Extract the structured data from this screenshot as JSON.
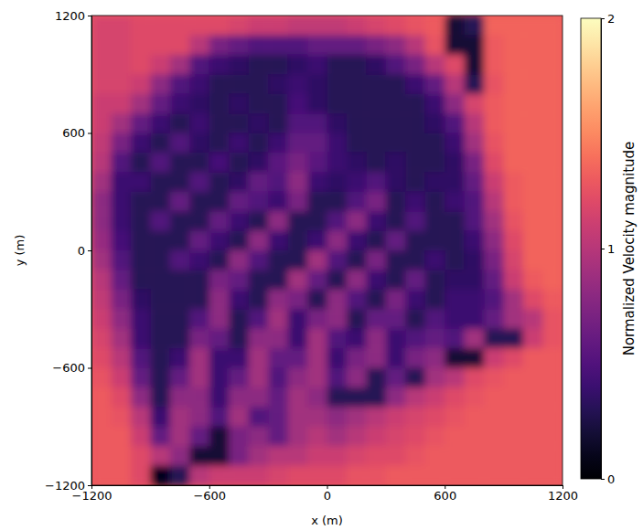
{
  "chart_data": {
    "type": "heatmap",
    "x_label": "x (m)",
    "y_label": "y (m)",
    "x": [
      -1150,
      -1050,
      -950,
      -850,
      -750,
      -650,
      -550,
      -450,
      -350,
      -250,
      -150,
      -50,
      50,
      150,
      250,
      350,
      450,
      550,
      650,
      750,
      850,
      950,
      1050,
      1150
    ],
    "y": [
      1150,
      1050,
      950,
      850,
      750,
      650,
      550,
      450,
      350,
      250,
      150,
      50,
      -50,
      -150,
      -250,
      -350,
      -450,
      -550,
      -650,
      -750,
      -850,
      -950,
      -1050,
      -1150
    ],
    "values": [
      [
        1.15,
        1.15,
        1.2,
        1.2,
        1.2,
        1.2,
        1.2,
        1.15,
        1.1,
        1.1,
        1.05,
        1.05,
        1.05,
        1.1,
        1.15,
        1.2,
        1.25,
        1.3,
        0.2,
        0.3,
        1.35,
        1.35,
        1.35,
        1.35
      ],
      [
        1.15,
        1.15,
        1.2,
        1.2,
        1.2,
        1.0,
        0.7,
        0.6,
        0.5,
        0.5,
        0.5,
        0.6,
        0.6,
        0.6,
        0.7,
        0.8,
        1.0,
        1.25,
        0.2,
        0.2,
        1.3,
        1.35,
        1.35,
        1.35
      ],
      [
        1.15,
        1.15,
        1.2,
        1.1,
        0.9,
        0.5,
        0.4,
        0.35,
        0.3,
        0.3,
        0.35,
        0.4,
        0.3,
        0.3,
        0.35,
        0.5,
        0.7,
        1.0,
        1.2,
        0.2,
        1.3,
        1.35,
        1.35,
        1.35
      ],
      [
        1.15,
        1.15,
        1.1,
        0.8,
        0.5,
        0.4,
        0.3,
        0.3,
        0.3,
        0.35,
        0.4,
        0.35,
        0.3,
        0.3,
        0.3,
        0.3,
        0.4,
        0.6,
        1.0,
        0.3,
        1.25,
        1.35,
        1.35,
        1.35
      ],
      [
        1.1,
        1.1,
        0.9,
        0.6,
        0.4,
        0.35,
        0.3,
        0.35,
        0.3,
        0.3,
        0.45,
        0.35,
        0.3,
        0.3,
        0.3,
        0.3,
        0.3,
        0.4,
        0.8,
        1.15,
        1.3,
        1.35,
        1.35,
        1.35
      ],
      [
        1.1,
        0.9,
        0.6,
        0.4,
        0.3,
        0.4,
        0.3,
        0.3,
        0.35,
        0.3,
        0.5,
        0.5,
        0.35,
        0.3,
        0.3,
        0.3,
        0.3,
        0.35,
        0.5,
        1.0,
        1.3,
        1.35,
        1.35,
        1.35
      ],
      [
        1.05,
        0.7,
        0.4,
        0.3,
        0.5,
        0.35,
        0.3,
        0.4,
        0.3,
        0.4,
        0.6,
        0.6,
        0.4,
        0.3,
        0.3,
        0.3,
        0.3,
        0.3,
        0.4,
        0.9,
        1.25,
        1.35,
        1.35,
        1.35
      ],
      [
        1.0,
        0.5,
        0.3,
        0.5,
        0.3,
        0.3,
        0.45,
        0.3,
        0.35,
        0.55,
        0.7,
        0.55,
        0.4,
        0.35,
        0.3,
        0.35,
        0.3,
        0.3,
        0.35,
        0.7,
        1.2,
        1.35,
        1.35,
        1.35
      ],
      [
        0.9,
        0.4,
        0.4,
        0.3,
        0.3,
        0.5,
        0.3,
        0.35,
        0.6,
        0.5,
        0.8,
        0.4,
        0.35,
        0.4,
        0.5,
        0.35,
        0.3,
        0.35,
        0.35,
        0.6,
        1.1,
        1.3,
        1.35,
        1.35
      ],
      [
        0.8,
        0.4,
        0.3,
        0.3,
        0.6,
        0.3,
        0.3,
        0.6,
        0.5,
        0.4,
        0.7,
        0.3,
        0.3,
        0.5,
        0.7,
        0.3,
        0.4,
        0.3,
        0.4,
        0.5,
        1.0,
        1.3,
        1.35,
        1.35
      ],
      [
        0.8,
        0.4,
        0.3,
        0.5,
        0.3,
        0.3,
        0.6,
        0.4,
        0.3,
        0.8,
        0.3,
        0.3,
        0.5,
        0.8,
        0.4,
        0.3,
        0.5,
        0.3,
        0.3,
        0.5,
        0.9,
        1.25,
        1.35,
        1.35
      ],
      [
        0.85,
        0.45,
        0.3,
        0.3,
        0.3,
        0.6,
        0.4,
        0.3,
        0.8,
        0.4,
        0.3,
        0.4,
        0.8,
        0.4,
        0.3,
        0.6,
        0.3,
        0.3,
        0.3,
        0.4,
        0.8,
        1.2,
        1.35,
        1.35
      ],
      [
        0.9,
        0.5,
        0.3,
        0.3,
        0.5,
        0.4,
        0.3,
        0.8,
        0.5,
        0.3,
        0.3,
        0.9,
        0.5,
        0.3,
        0.7,
        0.3,
        0.3,
        0.4,
        0.3,
        0.35,
        0.7,
        1.15,
        1.35,
        1.35
      ],
      [
        1.0,
        0.6,
        0.3,
        0.3,
        0.3,
        0.3,
        0.7,
        0.6,
        0.3,
        0.3,
        0.9,
        0.6,
        0.3,
        0.8,
        0.4,
        0.3,
        0.6,
        0.3,
        0.35,
        0.35,
        0.6,
        1.1,
        1.3,
        1.35
      ],
      [
        1.05,
        0.7,
        0.35,
        0.3,
        0.3,
        0.3,
        0.8,
        0.4,
        0.3,
        0.8,
        0.7,
        0.3,
        0.8,
        0.5,
        0.3,
        0.7,
        0.4,
        0.3,
        0.4,
        0.4,
        0.5,
        0.9,
        1.2,
        1.3
      ],
      [
        1.1,
        0.8,
        0.4,
        0.3,
        0.3,
        0.5,
        0.8,
        0.3,
        0.5,
        0.9,
        0.4,
        0.7,
        0.8,
        0.3,
        0.6,
        0.6,
        0.3,
        0.5,
        0.4,
        0.4,
        0.6,
        0.9,
        1.0,
        1.25
      ],
      [
        1.15,
        0.9,
        0.4,
        0.3,
        0.3,
        0.7,
        0.6,
        0.3,
        0.8,
        0.8,
        0.4,
        0.9,
        0.5,
        0.4,
        0.8,
        0.4,
        0.5,
        0.6,
        0.5,
        0.9,
        0.3,
        0.3,
        1.1,
        1.25
      ],
      [
        1.2,
        1.0,
        0.5,
        0.3,
        0.4,
        0.9,
        0.4,
        0.4,
        0.9,
        0.6,
        0.6,
        0.9,
        0.4,
        0.7,
        0.8,
        0.4,
        0.7,
        0.8,
        0.2,
        0.2,
        1.1,
        1.2,
        1.3,
        1.3
      ],
      [
        1.25,
        1.1,
        0.6,
        0.3,
        0.6,
        0.9,
        0.4,
        0.6,
        0.9,
        0.5,
        0.8,
        0.9,
        0.5,
        0.8,
        0.3,
        0.6,
        0.3,
        0.9,
        1.0,
        1.2,
        1.25,
        1.3,
        1.3,
        1.3
      ],
      [
        1.3,
        1.2,
        0.8,
        0.3,
        0.8,
        0.8,
        0.4,
        0.8,
        0.8,
        0.6,
        0.9,
        0.8,
        0.3,
        0.3,
        0.3,
        0.8,
        1.0,
        1.1,
        1.2,
        1.25,
        1.3,
        1.3,
        1.3,
        1.3
      ],
      [
        1.3,
        1.25,
        1.0,
        0.4,
        0.9,
        0.8,
        0.5,
        0.9,
        0.5,
        0.6,
        0.9,
        0.9,
        0.8,
        0.9,
        1.0,
        1.1,
        1.15,
        1.2,
        1.25,
        1.3,
        1.3,
        1.3,
        1.3,
        1.3
      ],
      [
        1.3,
        1.3,
        1.1,
        0.6,
        0.9,
        0.6,
        0.2,
        0.7,
        0.8,
        0.6,
        0.9,
        1.0,
        0.9,
        1.0,
        1.1,
        1.15,
        1.2,
        1.25,
        1.3,
        1.3,
        1.3,
        1.3,
        1.3,
        1.3
      ],
      [
        1.3,
        1.3,
        1.2,
        1.0,
        0.8,
        0.2,
        0.2,
        0.7,
        0.9,
        1.0,
        1.0,
        1.1,
        1.1,
        1.15,
        1.2,
        1.2,
        1.25,
        1.3,
        1.3,
        1.3,
        1.3,
        1.3,
        1.3,
        1.3
      ],
      [
        1.3,
        1.3,
        1.2,
        0.1,
        0.3,
        1.0,
        1.1,
        1.1,
        1.1,
        1.15,
        1.2,
        1.2,
        1.2,
        1.25,
        1.25,
        1.3,
        1.3,
        1.3,
        1.3,
        1.3,
        1.3,
        1.3,
        1.3,
        1.3
      ]
    ],
    "xlim": [
      -1200,
      1200
    ],
    "ylim": [
      -1200,
      1200
    ],
    "xticks": [
      {
        "value": -1200,
        "label": "−1200"
      },
      {
        "value": -600,
        "label": "−600"
      },
      0,
      600,
      1200
    ],
    "yticks": [
      {
        "value": -1200,
        "label": "−1200"
      },
      {
        "value": -600,
        "label": "−600"
      },
      0,
      600,
      1200
    ],
    "colorbar": {
      "label": "Normalized Velocity magnitude",
      "range": [
        0,
        2
      ],
      "ticks": [
        0,
        1,
        2
      ]
    }
  }
}
